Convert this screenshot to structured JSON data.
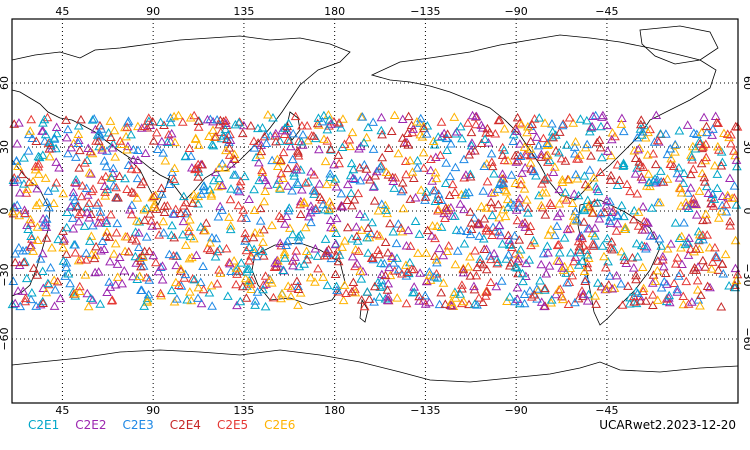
{
  "map": {
    "projection": "cylindrical equidistant",
    "lon_start": 20,
    "lon_end": 380,
    "lat_start": -90,
    "lat_end": 90,
    "grid": "dotted",
    "grid_lons": [
      45,
      90,
      135,
      180,
      225,
      270,
      315
    ],
    "grid_lats": [
      -60,
      -30,
      0,
      30,
      60
    ],
    "lon_tick_labels": [
      "45",
      "90",
      "135",
      "180",
      "−135",
      "−90",
      "−45"
    ],
    "lat_tick_labels": [
      "−60",
      "−30",
      "0",
      "30",
      "60"
    ],
    "observation_lat_range": [
      -45,
      45
    ],
    "marker": "open triangle"
  },
  "legend": {
    "items": [
      {
        "label": "C2E1",
        "color": "#00a6c8"
      },
      {
        "label": "C2E2",
        "color": "#9c27b0"
      },
      {
        "label": "C2E3",
        "color": "#1e88e5"
      },
      {
        "label": "C2E4",
        "color": "#c62828"
      },
      {
        "label": "C2E5",
        "color": "#e53935"
      },
      {
        "label": "C2E6",
        "color": "#ffb300"
      }
    ]
  },
  "credit": "UCARwet2.2023-12-20"
}
